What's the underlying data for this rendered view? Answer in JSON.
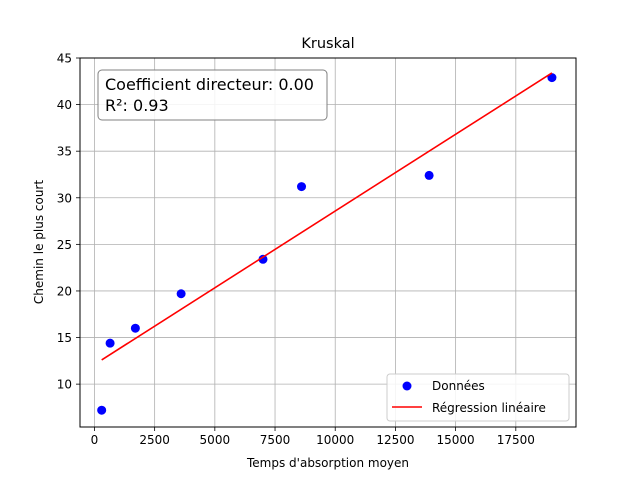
{
  "chart_data": {
    "type": "scatter",
    "title": "Kruskal",
    "xlabel": "Temps d'absorption moyen",
    "ylabel": "Chemin le plus court",
    "xlim": [
      -600,
      20000
    ],
    "ylim": [
      5.4,
      45.0
    ],
    "xticks": [
      0,
      2500,
      5000,
      7500,
      10000,
      12500,
      15000,
      17500
    ],
    "xtick_labels": [
      "0",
      "2500",
      "5000",
      "7500",
      "10000",
      "12500",
      "15000",
      "17500"
    ],
    "yticks": [
      10,
      15,
      20,
      25,
      30,
      35,
      40,
      45
    ],
    "ytick_labels": [
      "10",
      "15",
      "20",
      "25",
      "30",
      "35",
      "40",
      "45"
    ],
    "grid": true,
    "legend_position": "lower-right",
    "series": [
      {
        "name": "Données",
        "kind": "scatter",
        "color": "#0000ff",
        "x": [
          300,
          650,
          1700,
          3600,
          7000,
          8600,
          13900,
          19000
        ],
        "y": [
          7.2,
          14.4,
          16.0,
          19.7,
          23.4,
          31.2,
          32.4,
          42.9
        ]
      },
      {
        "name": "Régression linéaire",
        "kind": "line",
        "color": "#ff0000",
        "x": [
          300,
          19000
        ],
        "y": [
          12.6,
          43.4
        ]
      }
    ],
    "annotation": {
      "line1": "Coefficient directeur: 0.00",
      "line2": "R²: 0.93"
    }
  }
}
